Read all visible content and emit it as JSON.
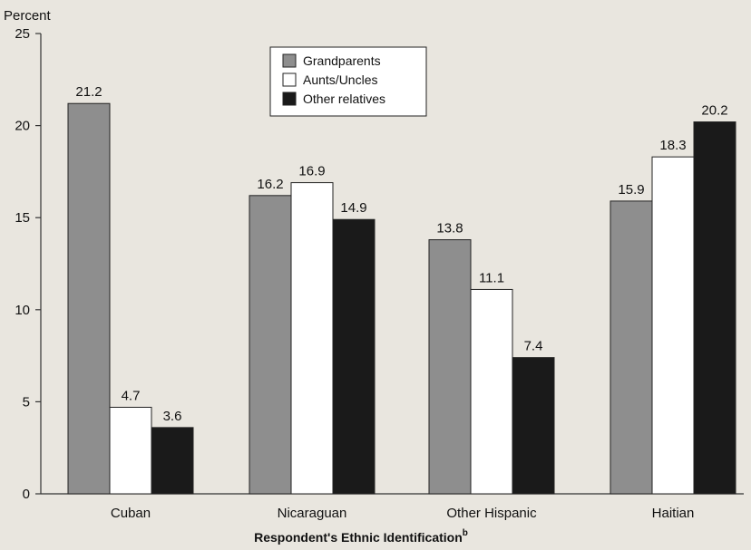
{
  "chart_data": {
    "type": "bar",
    "ylabel": "Percent",
    "xlabel": "Respondent's Ethnic Identification",
    "xlabel_superscript": "b",
    "ylim": [
      0,
      25
    ],
    "yticks": [
      0,
      5,
      10,
      15,
      20,
      25
    ],
    "grid": false,
    "legend_position": "top-center",
    "categories": [
      "Cuban",
      "Nicaraguan",
      "Other Hispanic",
      "Haitian"
    ],
    "series": [
      {
        "name": "Grandparents",
        "color": "#8e8e8e",
        "values": [
          21.2,
          16.2,
          13.8,
          15.9
        ]
      },
      {
        "name": "Aunts/Uncles",
        "color": "#ffffff",
        "values": [
          4.7,
          16.9,
          11.1,
          18.3
        ]
      },
      {
        "name": "Other relatives",
        "color": "#1a1a1a",
        "values": [
          3.6,
          14.9,
          7.4,
          20.2
        ]
      }
    ],
    "value_labels": [
      [
        "21.2",
        "16.2",
        "13.8",
        "15.9"
      ],
      [
        "4.7",
        "16.9",
        "11.1",
        "18.3"
      ],
      [
        "3.6",
        "14.9",
        "7.4",
        "20.2"
      ]
    ]
  }
}
